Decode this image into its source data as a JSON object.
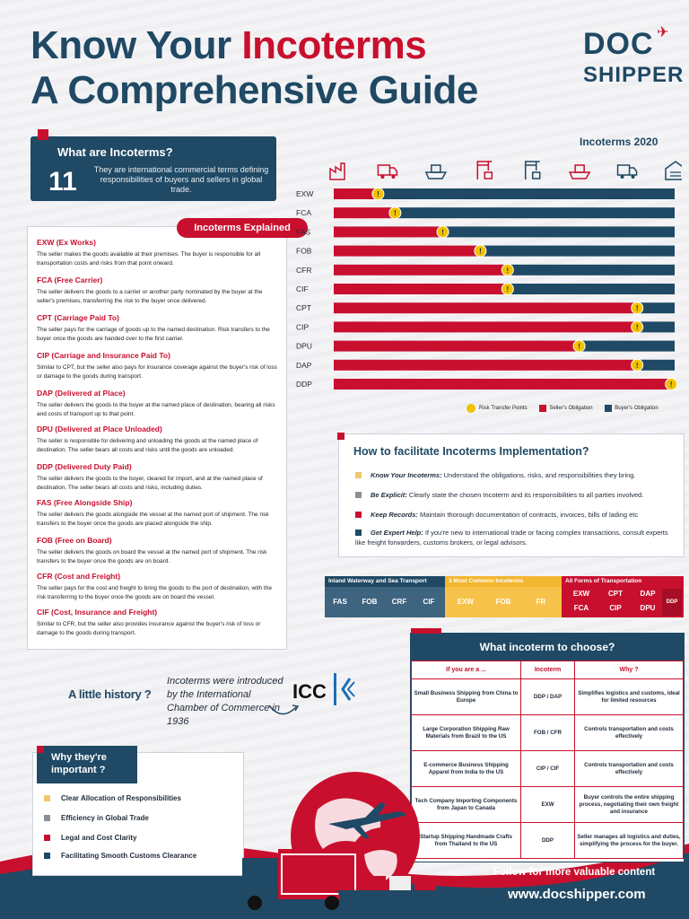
{
  "title": {
    "line1_a": "Know Your ",
    "line1_b": "Incoterms",
    "line2": "A Comprehensive Guide"
  },
  "logo": {
    "line1": "DOC",
    "line2": "SHIPPER"
  },
  "what": {
    "title": "What are Incoterms?",
    "number": "11",
    "description": "They are international commercial terms defining responsibilities of buyers and sellers in global trade."
  },
  "explained": {
    "header": "Incoterms Explained",
    "terms": [
      {
        "name": "EXW (Ex Works)",
        "desc": "The seller makes the goods available at their premises. The buyer is responsible for all transportation costs and risks from that point onward."
      },
      {
        "name": "FCA (Free Carrier)",
        "desc": "The seller delivers the goods to a carrier or another party nominated by the buyer at the seller's premises, transferring the risk to the buyer once delivered."
      },
      {
        "name": "CPT (Carriage Paid To)",
        "desc": "The seller pays for the carriage of goods up to the named destination. Risk transfers to the buyer once the goods are handed over to the first carrier."
      },
      {
        "name": "CIP (Carriage and Insurance Paid To)",
        "desc": "Similar to CPT, but the seller also pays for insurance coverage against the buyer's risk of loss or damage to the goods during transport."
      },
      {
        "name": "DAP (Delivered at Place)",
        "desc": "The seller delivers the goods to the buyer at the named place of destination, bearing all risks and costs of transport up to that point."
      },
      {
        "name": "DPU (Delivered at Place Unloaded)",
        "desc": "The seller is responsible for delivering and unloading the goods at the named place of destination. The seller bears all costs and risks until the goods are unloaded."
      },
      {
        "name": "DDP (Delivered Duty Paid)",
        "desc": "The seller delivers the goods to the buyer, cleared for import, and at the named place of destination. The seller bears all costs and risks, including duties."
      },
      {
        "name": "FAS (Free Alongside Ship)",
        "desc": "The seller delivers the goods alongside the vessel at the named port of shipment. The risk transfers to the buyer once the goods are placed alongside the ship."
      },
      {
        "name": "FOB (Free on Board)",
        "desc": "The seller delivers the goods on board the vessel at the named port of shipment. The risk transfers to the buyer once the goods are on board."
      },
      {
        "name": "CFR (Cost and Freight)",
        "desc": "The seller pays for the cost and freight to bring the goods to the port of destination, with the risk transferring to the buyer once the goods are on board the vessel."
      },
      {
        "name": "CIF (Cost, Insurance and Freight)",
        "desc": "Similar to CFR, but the seller also provides insurance against the buyer's risk of loss or damage to the goods during transport."
      }
    ]
  },
  "history": {
    "label": "A little history ?",
    "text": "Incoterms were introduced by the International Chamber of Commerce in 1936",
    "logo": "ICC"
  },
  "why": {
    "header": "Why they're important ?",
    "items": [
      {
        "text": "Clear Allocation of Responsibilities",
        "color": "#f2c76b"
      },
      {
        "text": "Efficiency in Global Trade",
        "color": "#8a8f96"
      },
      {
        "text": "Legal and Cost Clarity",
        "color": "#c8102e"
      },
      {
        "text": "Facilitating Smooth Customs Clearance",
        "color": "#1f4964"
      }
    ]
  },
  "chart_title": "Incoterms 2020",
  "chart_data": {
    "type": "bar",
    "stages": [
      "factory-icon",
      "truck-icon",
      "ship-icon",
      "port-crane-icon",
      "port-crane-icon",
      "ship-icon",
      "truck-icon",
      "warehouse-icon"
    ],
    "categories": [
      "EXW",
      "FCA",
      "FAS",
      "FOB",
      "CFR",
      "CIF",
      "CPT",
      "CIP",
      "DPU",
      "DAP",
      "DDP"
    ],
    "risk_transfer": [
      0.13,
      0.18,
      0.32,
      0.43,
      0.51,
      0.51,
      0.89,
      0.89,
      0.72,
      0.89,
      0.99
    ],
    "seller_share": [
      0.13,
      0.18,
      0.32,
      0.43,
      0.51,
      0.51,
      0.89,
      0.89,
      0.72,
      0.89,
      0.99
    ],
    "colors": {
      "seller": "#c8102e",
      "buyer": "#1f4964",
      "risk": "#f2c200"
    },
    "legend": [
      "Risk Transfer Points",
      "Seller's Obligation",
      "Buyer's Obligation"
    ]
  },
  "how": {
    "title": "How to facilitate Incoterms Implementation?",
    "items": [
      {
        "label": "Know Your Incoterms:",
        "text": " Understand the obligations, risks, and responsibilities they bring.",
        "color": "#f2c76b"
      },
      {
        "label": "Be Explicit:",
        "text": " Clearly state the chosen Incoterm and its responsibilities to all parties involved.",
        "color": "#8a8f96"
      },
      {
        "label": "Keep Records:",
        "text": " Maintain thorough documentation of contracts, invoices, bills of lading etc",
        "color": "#c8102e"
      },
      {
        "label": "Get Expert Help:",
        "text": " If you're new to international trade or facing complex transactions, consult experts like freight forwarders, customs brokers, or legal advisors.",
        "color": "#1f4964"
      }
    ]
  },
  "groups": {
    "inland": {
      "header": "Inland Waterway and Sea Transport",
      "terms": [
        "FAS",
        "FOB",
        "CRF",
        "CIF"
      ]
    },
    "common": {
      "header": "3 Most Common Incoterms",
      "terms": [
        "EXW",
        "FOB",
        "FR"
      ]
    },
    "all": {
      "header": "All Forms of Transportation",
      "row1": [
        "EXW",
        "CPT",
        "DAP"
      ],
      "row2": [
        "FCA",
        "CIP",
        "DPU"
      ],
      "side": "DDP"
    }
  },
  "choose": {
    "header": "What incoterm to choose?",
    "columns": [
      "If you are a ...",
      "Incoterm",
      "Why ?"
    ],
    "rows": [
      [
        "Small Business Shipping from China to Europe",
        "DDP / DAP",
        "Simplifies logistics and customs, ideal for limited resources"
      ],
      [
        "Large Corporation Shipping Raw Materials from Brazil to the US",
        "FOB / CFR",
        "Controls transportation and costs effectively"
      ],
      [
        "E-commerce Business Shipping Apparel from India to the US",
        "CIP / CIF",
        "Controls transportation and costs effectively"
      ],
      [
        "Tech Company Importing Components from Japan to Canada",
        "EXW",
        "Buyer controls the entire shipping process, negotiating their own freight and insurance"
      ],
      [
        "Startup Shipping Handmade Crafts from Thailand to the US",
        "DDP",
        "Seller manages all logistics and duties, simplifying the process for the buyer."
      ]
    ]
  },
  "footer": {
    "follow": "Follow for more valuable content",
    "site": "www.docshipper.com"
  }
}
